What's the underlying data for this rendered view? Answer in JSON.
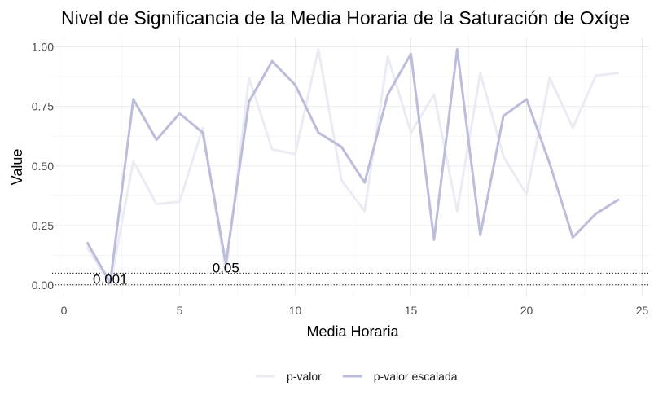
{
  "chart_data": {
    "type": "line",
    "title": "Nivel de Significancia de la Media Horaria de la Saturación de Oxíge",
    "xlabel": "Media Horaria",
    "ylabel": "Value",
    "xlim": [
      0,
      25
    ],
    "ylim": [
      0,
      1
    ],
    "x_ticks": [
      "0",
      "5",
      "10",
      "15",
      "20",
      "25"
    ],
    "y_ticks": [
      "0.00",
      "0.25",
      "0.50",
      "0.75",
      "1.00"
    ],
    "grid": true,
    "legend_position": "bottom",
    "x": [
      1,
      2,
      3,
      4,
      5,
      6,
      7,
      8,
      9,
      10,
      11,
      12,
      13,
      14,
      15,
      16,
      17,
      18,
      19,
      20,
      21,
      22,
      23,
      24
    ],
    "series": [
      {
        "name": "p-valor",
        "color": "#ebebf3",
        "values": [
          0.16,
          0.001,
          0.52,
          0.34,
          0.35,
          0.66,
          0.05,
          0.87,
          0.57,
          0.55,
          0.99,
          0.44,
          0.31,
          0.96,
          0.64,
          0.8,
          0.31,
          0.89,
          0.54,
          0.38,
          0.87,
          0.66,
          0.88,
          0.89
        ]
      },
      {
        "name": "p-valor escalada",
        "color": "#bcbcdb",
        "values": [
          0.18,
          0.01,
          0.78,
          0.61,
          0.72,
          0.64,
          0.09,
          0.77,
          0.94,
          0.84,
          0.64,
          0.58,
          0.43,
          0.8,
          0.97,
          0.19,
          0.99,
          0.21,
          0.71,
          0.78,
          0.51,
          0.2,
          0.3,
          0.36
        ]
      }
    ],
    "reference_lines": [
      {
        "y": 0.001,
        "label": "0.001",
        "x": 2,
        "style": "dotted"
      },
      {
        "y": 0.05,
        "label": "0.05",
        "x": 7,
        "style": "dotted"
      }
    ]
  }
}
